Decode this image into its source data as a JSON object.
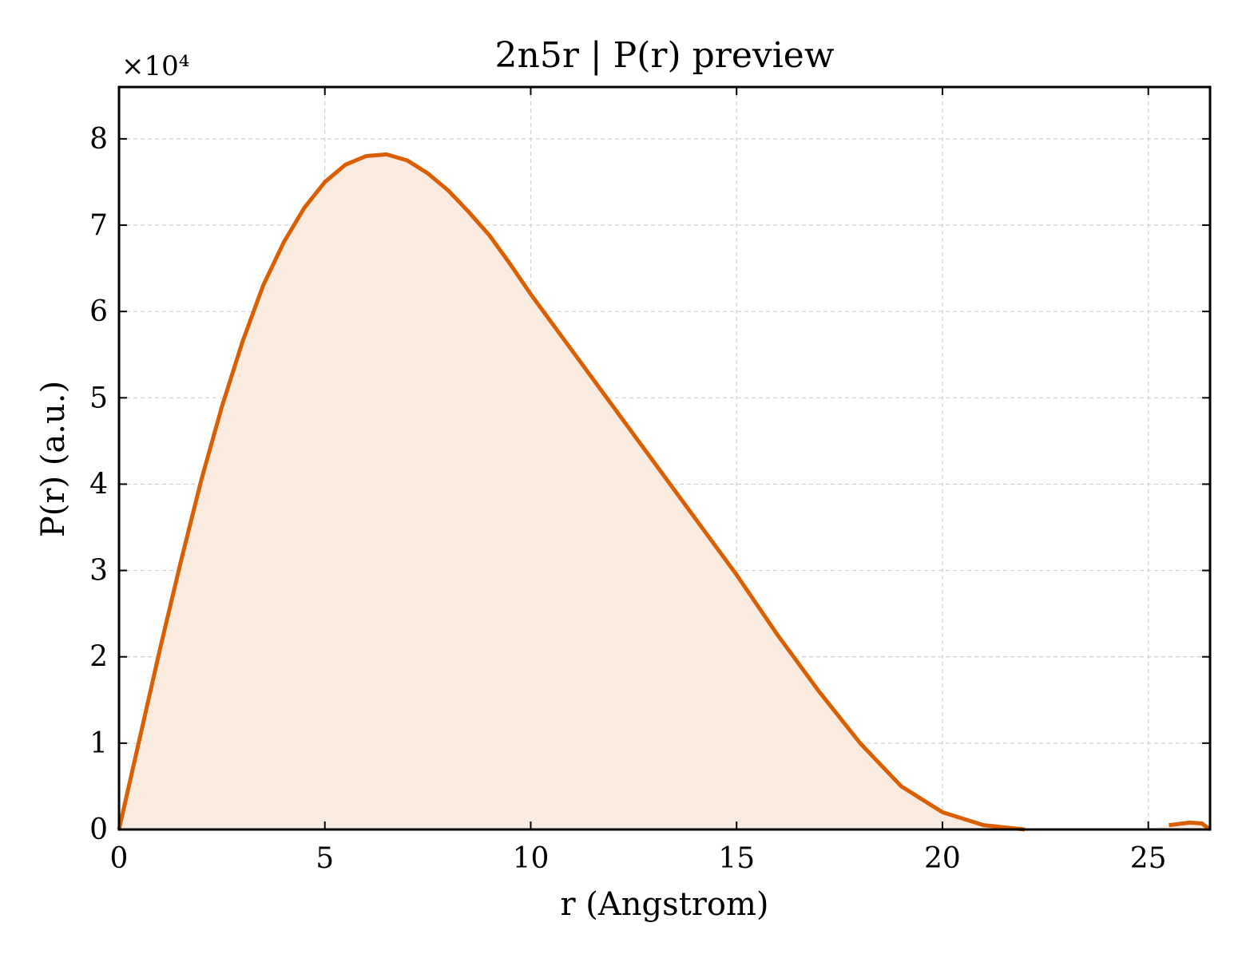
{
  "chart_data": {
    "type": "area",
    "title": "2n5r | P(r) preview",
    "xlabel": "r (Angstrom)",
    "ylabel": "P(r) (a.u.)",
    "y_multiplier_label": "×10⁴",
    "xlim": [
      0,
      26.5
    ],
    "ylim": [
      0,
      8.6
    ],
    "y_unit_scale": 10000,
    "x_ticks": [
      0,
      5,
      10,
      15,
      20,
      25
    ],
    "y_ticks": [
      0,
      1,
      2,
      3,
      4,
      5,
      6,
      7,
      8
    ],
    "grid": true,
    "colors": {
      "line": "#d95f02",
      "fill": "#f9ebe0",
      "grid": "#d0d0d0"
    },
    "series": [
      {
        "x": [
          0,
          0.5,
          1,
          1.5,
          2,
          2.5,
          3,
          3.5,
          4,
          4.5,
          5,
          5.5,
          6,
          6.5,
          7,
          7.5,
          8,
          8.5,
          9,
          9.5,
          10,
          11,
          12,
          13,
          14,
          15,
          16,
          17,
          18,
          19,
          20,
          21,
          22,
          22.5,
          25,
          25.5,
          26,
          26.3,
          26.5
        ],
        "y": [
          0,
          1.05,
          2.1,
          3.1,
          4.05,
          4.9,
          5.65,
          6.3,
          6.8,
          7.2,
          7.5,
          7.7,
          7.8,
          7.82,
          7.75,
          7.6,
          7.4,
          7.15,
          6.88,
          6.55,
          6.2,
          5.55,
          4.9,
          4.25,
          3.6,
          2.95,
          2.25,
          1.6,
          1.0,
          0.5,
          0.2,
          0.05,
          0.0,
          0.0,
          0.0,
          0.05,
          0.08,
          0.07,
          0.0
        ]
      }
    ]
  }
}
